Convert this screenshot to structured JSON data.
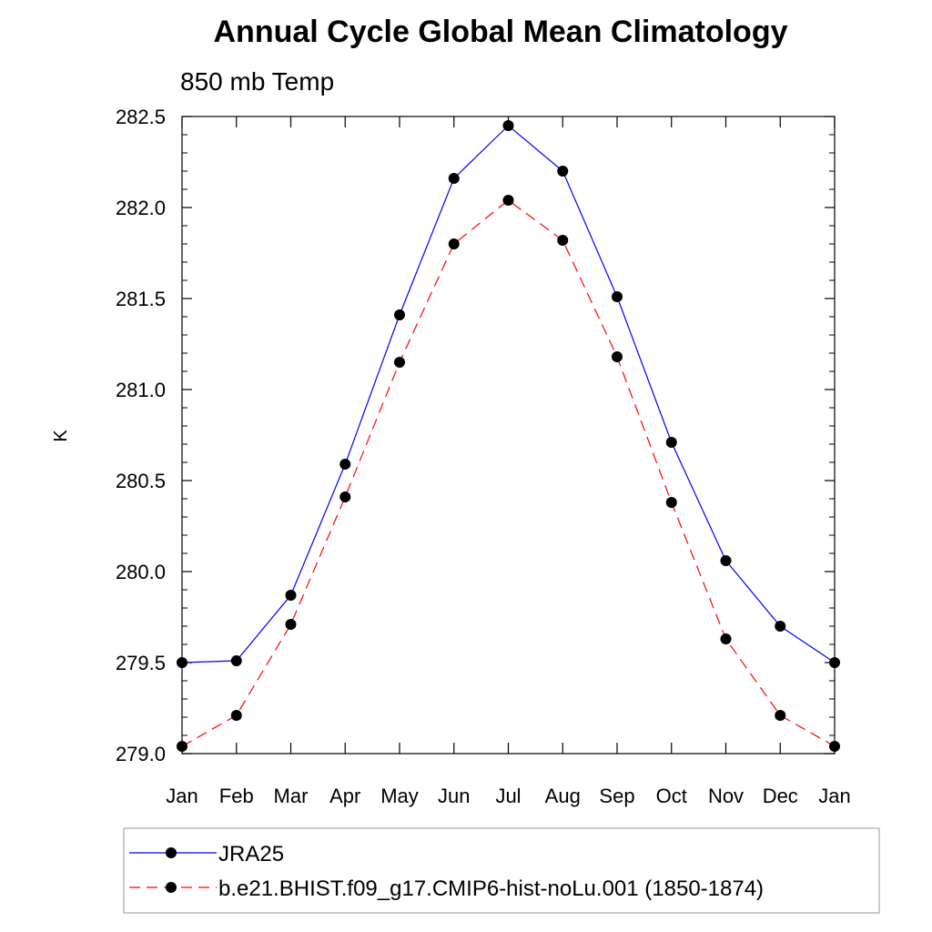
{
  "chart_data": {
    "type": "line",
    "title": "Annual Cycle Global Mean Climatology",
    "subtitle": "850 mb Temp",
    "ylabel": "K",
    "xlabel": "",
    "ylim": [
      279.0,
      282.5
    ],
    "yticks": [
      "279.0",
      "279.5",
      "280.0",
      "280.5",
      "281.0",
      "281.5",
      "282.0",
      "282.5"
    ],
    "categories": [
      "Jan",
      "Feb",
      "Mar",
      "Apr",
      "May",
      "Jun",
      "Jul",
      "Aug",
      "Sep",
      "Oct",
      "Nov",
      "Dec",
      "Jan"
    ],
    "series": [
      {
        "name": "JRA25",
        "color": "#0000ff",
        "dash": "solid",
        "marker": "filled-circle",
        "values": [
          279.5,
          279.51,
          279.87,
          280.59,
          281.41,
          282.16,
          282.45,
          282.2,
          281.51,
          280.71,
          280.06,
          279.7,
          279.5
        ]
      },
      {
        "name": "b.e21.BHIST.f09_g17.CMIP6-hist-noLu.001 (1850-1874)",
        "color": "#ff0000",
        "dash": "dashed",
        "marker": "filled-circle",
        "values": [
          279.04,
          279.21,
          279.71,
          280.41,
          281.15,
          281.8,
          282.04,
          281.82,
          281.18,
          280.38,
          279.63,
          279.21,
          279.04
        ]
      }
    ],
    "legend_position": "bottom",
    "grid": false
  }
}
